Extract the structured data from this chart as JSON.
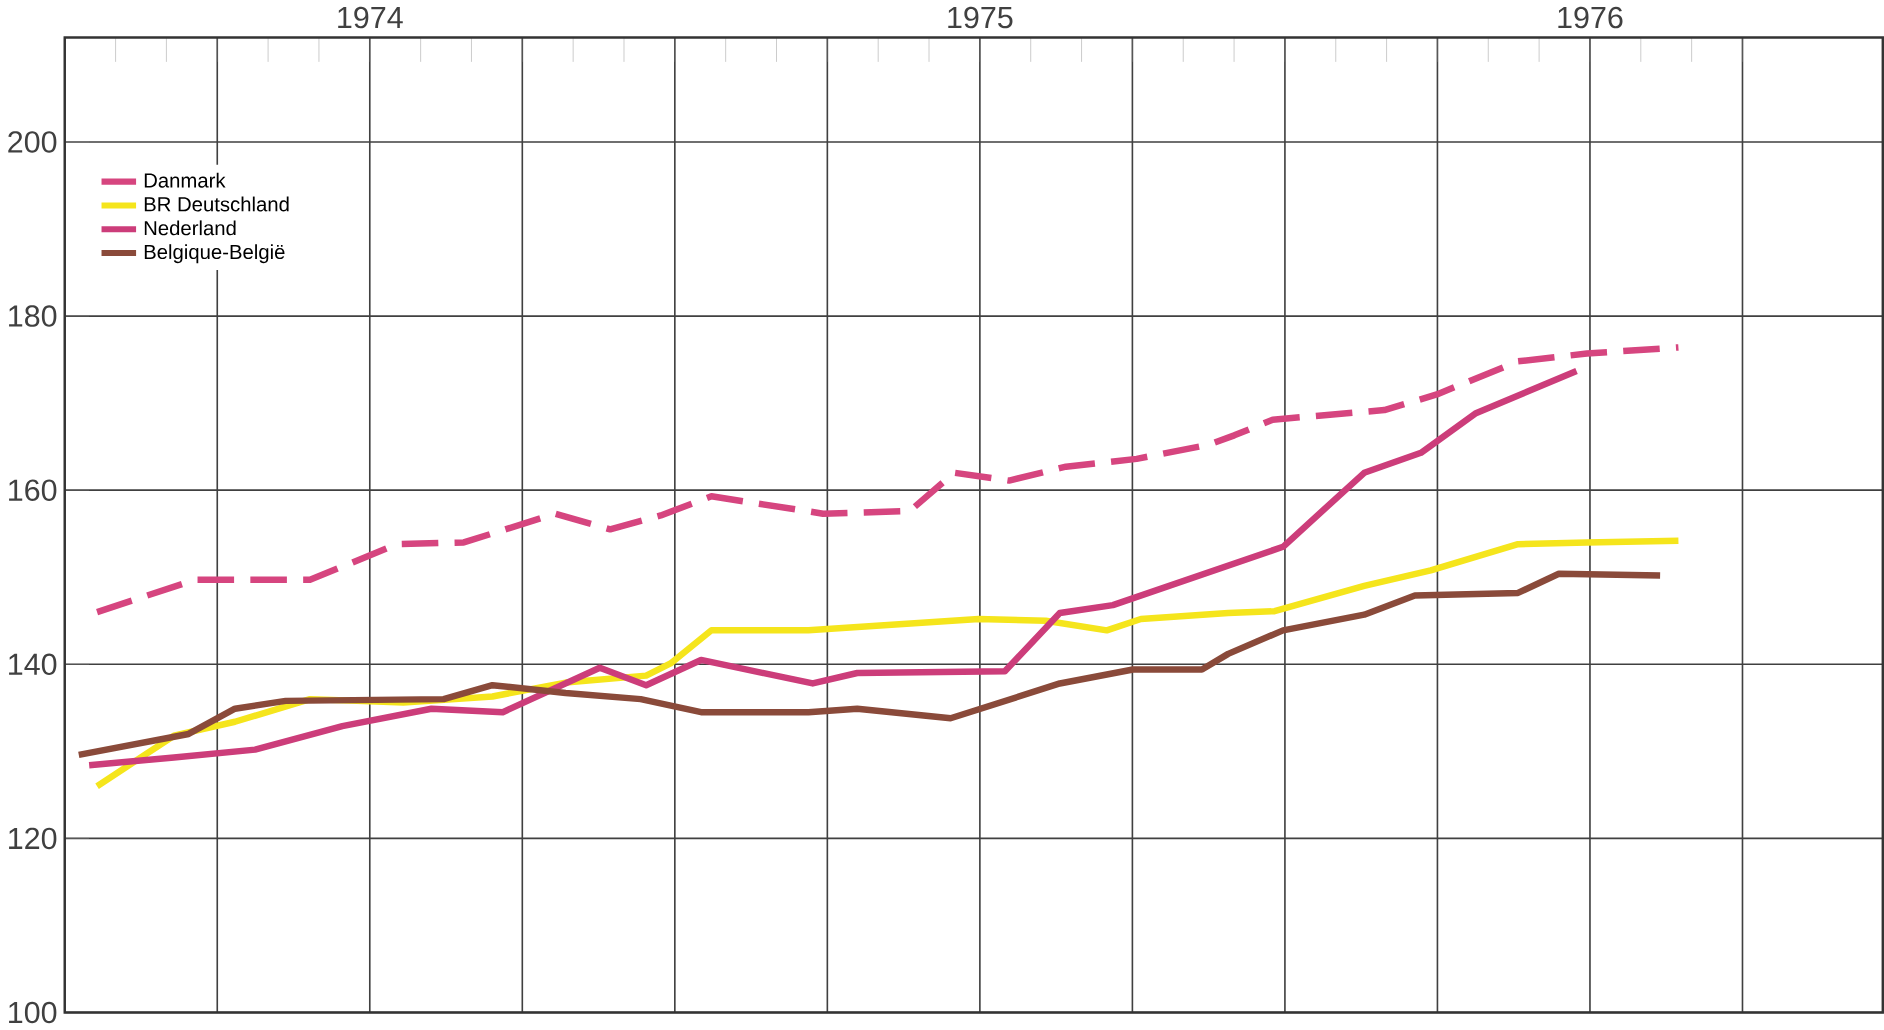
{
  "chart_data": {
    "type": "line",
    "xlim": [
      1974,
      1976.98
    ],
    "ylim": [
      100,
      212
    ],
    "xticks": [
      {
        "value": 1974,
        "label": null
      },
      {
        "value": 1974.25,
        "label": null
      },
      {
        "value": 1974.5,
        "label": "1974"
      },
      {
        "value": 1974.75,
        "label": null
      },
      {
        "value": 1975,
        "label": null
      },
      {
        "value": 1975.25,
        "label": null
      },
      {
        "value": 1975.5,
        "label": "1975"
      },
      {
        "value": 1975.75,
        "label": null
      },
      {
        "value": 1976,
        "label": null
      },
      {
        "value": 1976.25,
        "label": null
      },
      {
        "value": 1976.5,
        "label": "1976"
      },
      {
        "value": 1976.75,
        "label": null
      }
    ],
    "yticks": [
      100,
      120,
      140,
      160,
      180,
      200
    ],
    "grid": true,
    "legend": "top left",
    "marker": "none",
    "series": [
      {
        "name": "Danmark",
        "color": "#d6457f",
        "line_style": "dashed",
        "x": [
          1974.053,
          1974.213,
          1974.402,
          1974.545,
          1974.654,
          1974.804,
          1974.894,
          1974.977,
          1975.06,
          1975.243,
          1975.385,
          1975.458,
          1975.548,
          1975.641,
          1975.757,
          1975.874,
          1975.917,
          1975.98,
          1976.163,
          1976.249,
          1976.382,
          1976.495,
          1976.645
        ],
        "values": [
          146,
          149.7,
          149.7,
          153.8,
          154,
          157.3,
          155.5,
          157.1,
          159.3,
          157.3,
          157.6,
          162,
          161.1,
          162.7,
          163.6,
          165.2,
          166.3,
          168.1,
          169.2,
          171,
          174.8,
          175.7,
          176.4
        ]
      },
      {
        "name": "BR Deutschland",
        "color": "#f5e51c",
        "x": [
          1974.053,
          1974.179,
          1974.279,
          1974.402,
          1974.555,
          1974.701,
          1974.821,
          1974.953,
          1974.993,
          1975.06,
          1975.219,
          1975.498,
          1975.608,
          1975.708,
          1975.764,
          1975.907,
          1975.983,
          1976.13,
          1976.239,
          1976.382,
          1976.495,
          1976.645
        ],
        "values": [
          126,
          131.8,
          133.4,
          136,
          135.6,
          136.3,
          137.9,
          138.7,
          140.1,
          143.9,
          143.9,
          145.2,
          145,
          143.9,
          145.2,
          145.9,
          146.1,
          149,
          150.8,
          153.8,
          154,
          154.2
        ]
      },
      {
        "name": "Nederland",
        "color": "#cc3d7a",
        "x": [
          1974.04,
          1974.179,
          1974.312,
          1974.455,
          1974.601,
          1974.718,
          1974.877,
          1974.953,
          1975.043,
          1975.226,
          1975.299,
          1975.541,
          1975.631,
          1975.718,
          1975.997,
          1976.13,
          1976.223,
          1976.312,
          1976.478
        ],
        "values": [
          128.4,
          129.3,
          130.2,
          132.9,
          134.9,
          134.5,
          139.6,
          137.6,
          140.5,
          137.8,
          139,
          139.2,
          145.9,
          146.8,
          153.5,
          162,
          164.3,
          168.8,
          173.7
        ]
      },
      {
        "name": "Belgique-België",
        "color": "#8a4a3a",
        "x": [
          1974.023,
          1974.203,
          1974.279,
          1974.362,
          1974.621,
          1974.701,
          1974.821,
          1974.944,
          1975.043,
          1975.086,
          1975.219,
          1975.299,
          1975.452,
          1975.631,
          1975.751,
          1975.864,
          1975.907,
          1975.997,
          1976.13,
          1976.213,
          1976.382,
          1976.449,
          1976.615
        ],
        "values": [
          129.6,
          132,
          134.9,
          135.8,
          136,
          137.6,
          136.7,
          136,
          134.5,
          134.5,
          134.5,
          134.9,
          133.8,
          137.8,
          139.4,
          139.4,
          141.2,
          143.9,
          145.7,
          147.9,
          148.2,
          150.4,
          150.2
        ]
      }
    ]
  }
}
